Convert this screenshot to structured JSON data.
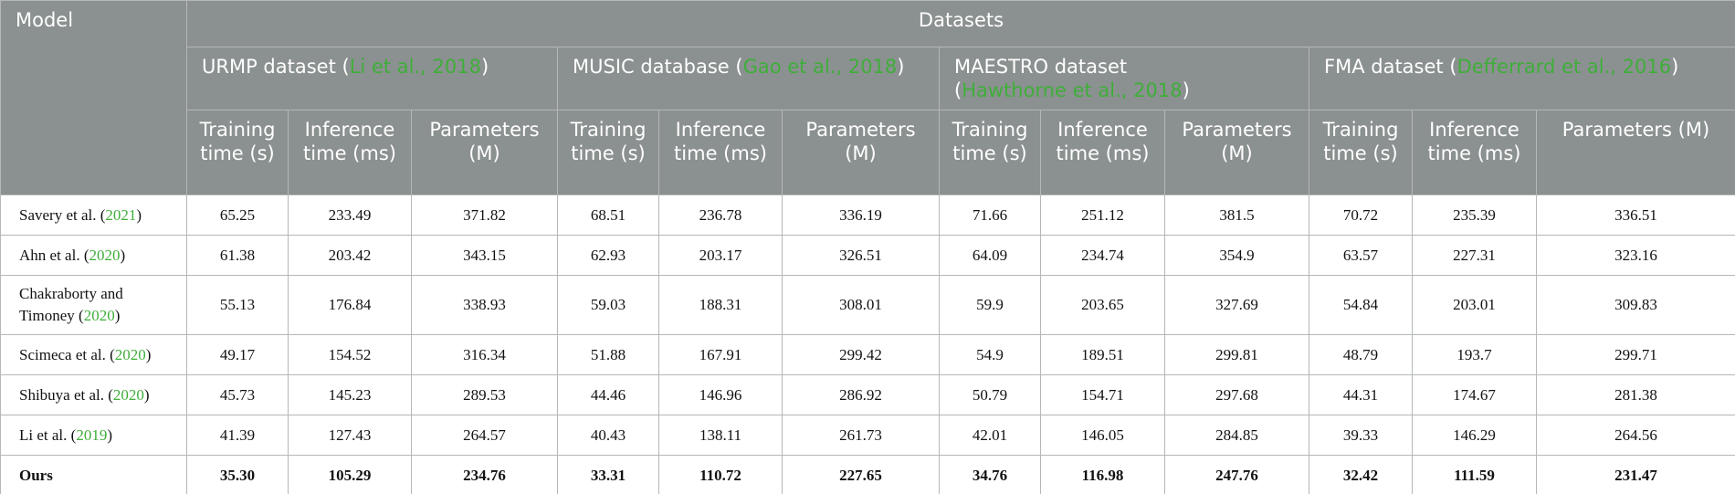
{
  "table": {
    "model_header": "Model",
    "group_header": "Datasets",
    "datasets": [
      {
        "name": "URMP dataset",
        "open": "(",
        "cite": "Li et al., 2018",
        "close": ")"
      },
      {
        "name": "MUSIC database",
        "open": "(",
        "cite": "Gao et al., 2018",
        "close": ")"
      },
      {
        "name": "MAESTRO dataset",
        "open": "(",
        "cite": "Hawthorne et al., 2018",
        "close": ")"
      },
      {
        "name": "FMA dataset",
        "open": "(",
        "cite": "Defferrard et al., 2016",
        "close": ")"
      }
    ],
    "columns": [
      "Training time (s)",
      "Inference time (ms)",
      "Parameters (M)"
    ],
    "rows": [
      {
        "model": [
          "Savery et al. (",
          "2021",
          ")"
        ],
        "cells": [
          "65.25",
          "233.49",
          "371.82",
          "68.51",
          "236.78",
          "336.19",
          "71.66",
          "251.12",
          "381.5",
          "70.72",
          "235.39",
          "336.51"
        ]
      },
      {
        "model": [
          "Ahn et al. (",
          "2020",
          ")"
        ],
        "cells": [
          "61.38",
          "203.42",
          "343.15",
          "62.93",
          "203.17",
          "326.51",
          "64.09",
          "234.74",
          "354.9",
          "63.57",
          "227.31",
          "323.16"
        ]
      },
      {
        "model": [
          "Chakraborty and Timoney (",
          "2020",
          ")"
        ],
        "cells": [
          "55.13",
          "176.84",
          "338.93",
          "59.03",
          "188.31",
          "308.01",
          "59.9",
          "203.65",
          "327.69",
          "54.84",
          "203.01",
          "309.83"
        ]
      },
      {
        "model": [
          "Scimeca et al. (",
          "2020",
          ")"
        ],
        "cells": [
          "49.17",
          "154.52",
          "316.34",
          "51.88",
          "167.91",
          "299.42",
          "54.9",
          "189.51",
          "299.81",
          "48.79",
          "193.7",
          "299.71"
        ]
      },
      {
        "model": [
          "Shibuya et al. (",
          "2020",
          ")"
        ],
        "cells": [
          "45.73",
          "145.23",
          "289.53",
          "44.46",
          "146.96",
          "286.92",
          "50.79",
          "154.71",
          "297.68",
          "44.31",
          "174.67",
          "281.38"
        ]
      },
      {
        "model": [
          "Li et al. (",
          "2019",
          ")"
        ],
        "cells": [
          "41.39",
          "127.43",
          "264.57",
          "40.43",
          "138.11",
          "261.73",
          "42.01",
          "146.05",
          "284.85",
          "39.33",
          "146.29",
          "264.56"
        ]
      },
      {
        "model": [
          "Ours"
        ],
        "cells": [
          "35.30",
          "105.29",
          "234.76",
          "33.31",
          "110.72",
          "227.65",
          "34.76",
          "116.98",
          "247.76",
          "32.42",
          "111.59",
          "231.47"
        ]
      }
    ]
  }
}
